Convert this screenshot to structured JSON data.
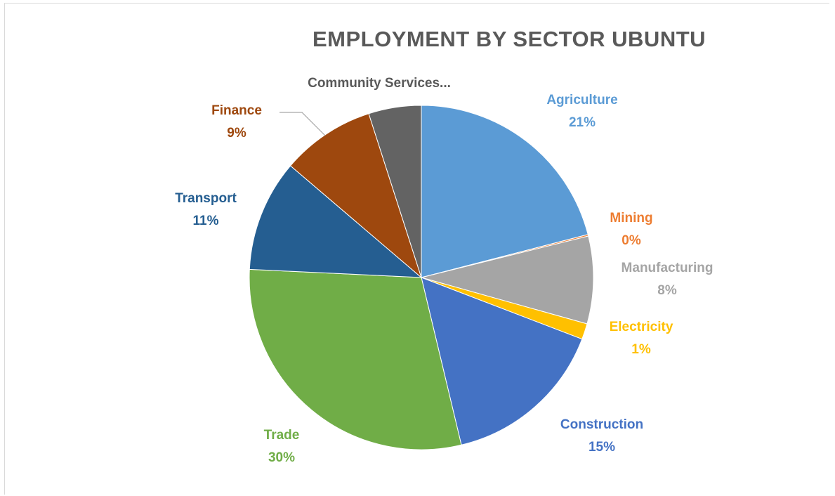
{
  "chart_data": {
    "type": "pie",
    "title": "EMPLOYMENT BY SECTOR UBUNTU",
    "slices": [
      {
        "label": "Agriculture",
        "value": 21,
        "pct_label": "21%",
        "color": "#5B9BD5"
      },
      {
        "label": "Mining",
        "value": 0,
        "pct_label": "0%",
        "color": "#ED7D31"
      },
      {
        "label": "Manufacturing",
        "value": 8,
        "pct_label": "8%",
        "color": "#A5A5A5"
      },
      {
        "label": "Electricity",
        "value": 1,
        "pct_label": "1%",
        "color": "#FFC000"
      },
      {
        "label": "Construction",
        "value": 15,
        "pct_label": "15%",
        "color": "#4472C4"
      },
      {
        "label": "Trade",
        "value": 30,
        "pct_label": "30%",
        "color": "#70AD47"
      },
      {
        "label": "Transport",
        "value": 11,
        "pct_label": "11%",
        "color": "#255E91"
      },
      {
        "label": "Finance",
        "value": 9,
        "pct_label": "9%",
        "color": "#9E480E"
      },
      {
        "label": "Community Services...",
        "value": 5,
        "pct_label": "",
        "color": "#636363"
      }
    ],
    "legend": "none",
    "data_labels": "outside"
  }
}
